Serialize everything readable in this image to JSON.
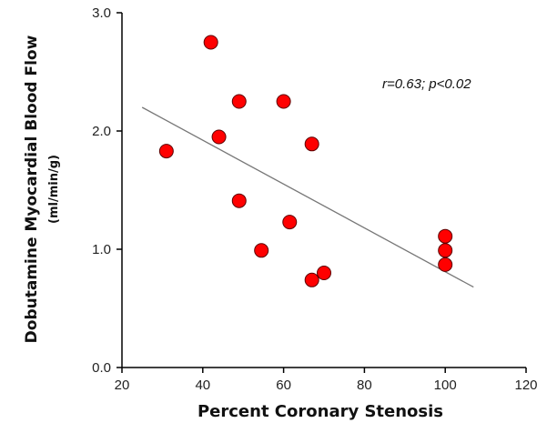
{
  "chart_data": {
    "type": "scatter",
    "xlabel": "Percent Coronary Stenosis",
    "ylabel": "Dobutamine Myocardial Blood Flow",
    "ylabel_unit": "(ml/min/g)",
    "xlim": [
      20,
      120
    ],
    "ylim": [
      0,
      3
    ],
    "x_ticks": [
      "20",
      "40",
      "60",
      "80",
      "100",
      "120"
    ],
    "y_ticks": [
      "0.0",
      "1.0",
      "2.0",
      "3.0"
    ],
    "annotation": "r=0.63; p<0.02",
    "grid": false,
    "legend": "none",
    "point_color": "#ff0000",
    "point_edge_color": "#5a0000",
    "line_color": "#777777",
    "points": [
      {
        "x": 31,
        "y": 1.83
      },
      {
        "x": 42,
        "y": 2.75
      },
      {
        "x": 44,
        "y": 1.95
      },
      {
        "x": 49,
        "y": 2.25
      },
      {
        "x": 49,
        "y": 1.41
      },
      {
        "x": 54.5,
        "y": 0.99
      },
      {
        "x": 60,
        "y": 2.25
      },
      {
        "x": 61.5,
        "y": 1.23
      },
      {
        "x": 67,
        "y": 1.89
      },
      {
        "x": 67,
        "y": 0.74
      },
      {
        "x": 70,
        "y": 0.8
      },
      {
        "x": 100,
        "y": 1.11
      },
      {
        "x": 100,
        "y": 0.99
      },
      {
        "x": 100,
        "y": 0.87
      }
    ],
    "regression_line": {
      "x": [
        25,
        107
      ],
      "y": [
        2.2,
        0.68
      ]
    }
  }
}
